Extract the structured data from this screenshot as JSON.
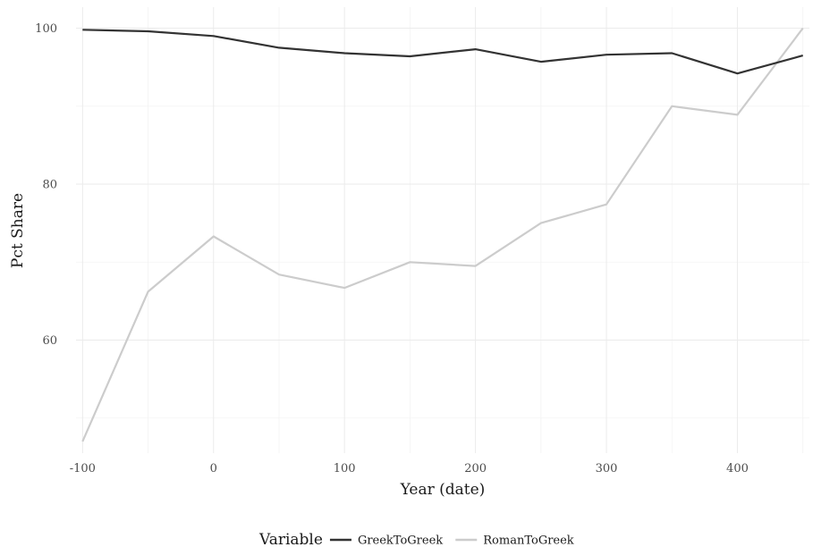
{
  "chart_data": {
    "type": "line",
    "xlabel": "Year (date)",
    "ylabel": "Pct Share",
    "xlim": [
      -105,
      455
    ],
    "ylim": [
      45.5,
      102.7
    ],
    "x_ticks": [
      -100,
      0,
      100,
      200,
      300,
      400
    ],
    "y_ticks": [
      60,
      80,
      100
    ],
    "x_tick_labels": [
      "-100",
      "0",
      "100",
      "200",
      "300",
      "400"
    ],
    "y_tick_labels": [
      "60",
      "80",
      "100"
    ],
    "x": [
      -100,
      -50,
      0,
      50,
      100,
      150,
      200,
      250,
      300,
      350,
      400,
      450
    ],
    "grid": true,
    "legend": {
      "title": "Variable",
      "position": "bottom"
    },
    "series": [
      {
        "name": "GreekToGreek",
        "color": "#333333",
        "values": [
          99.8,
          99.6,
          99.0,
          97.5,
          96.8,
          96.4,
          97.3,
          95.7,
          96.6,
          96.8,
          94.2,
          96.5
        ]
      },
      {
        "name": "RomanToGreek",
        "color": "#cccccc",
        "values": [
          47.0,
          66.2,
          73.3,
          68.4,
          66.7,
          70.0,
          69.5,
          75.0,
          77.4,
          90.0,
          88.9,
          100.0
        ]
      }
    ]
  }
}
